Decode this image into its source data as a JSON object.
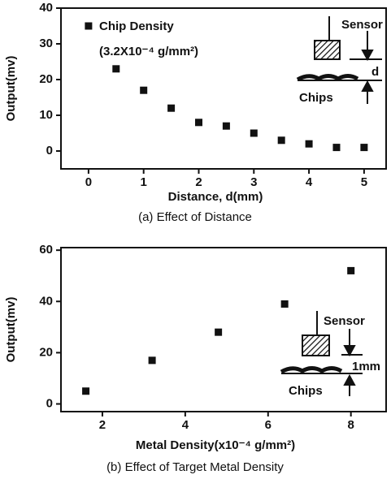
{
  "chart_data": [
    {
      "type": "scatter",
      "caption": "(a) Effect of Distance",
      "xlabel": "Distance, d(mm)",
      "ylabel": "Output(mv)",
      "annotations": [
        "Chip Density",
        "(3.2X10⁻⁴ g/mm²)",
        "Sensor",
        "d",
        "Chips"
      ],
      "x": [
        0,
        0.5,
        1,
        1.5,
        2,
        2.5,
        3,
        3.5,
        4,
        4.5,
        5
      ],
      "values": [
        35,
        23,
        17,
        12,
        8,
        7,
        5,
        3,
        2,
        1,
        1
      ],
      "color": "#111111",
      "xlim": [
        -0.5,
        5.4
      ],
      "xticks": [
        0,
        1,
        2,
        3,
        4,
        5
      ],
      "ylim": [
        -5,
        40
      ],
      "yticks": [
        0,
        10,
        20,
        30,
        40
      ]
    },
    {
      "type": "scatter",
      "caption": "(b) Effect of Target Metal Density",
      "xlabel": "Metal Density(x10⁻⁴ g/mm²)",
      "ylabel": "Output(mv)",
      "annotations": [
        "Sensor",
        "1mm",
        "Chips"
      ],
      "x": [
        1.6,
        3.2,
        4.8,
        6.4,
        8.0
      ],
      "values": [
        5,
        17,
        28,
        39,
        52
      ],
      "color": "#111111",
      "xlim": [
        1.0,
        8.85
      ],
      "xticks": [
        2,
        4,
        6,
        8
      ],
      "ylim": [
        -3,
        61
      ],
      "yticks": [
        0,
        20,
        40,
        60
      ]
    }
  ]
}
